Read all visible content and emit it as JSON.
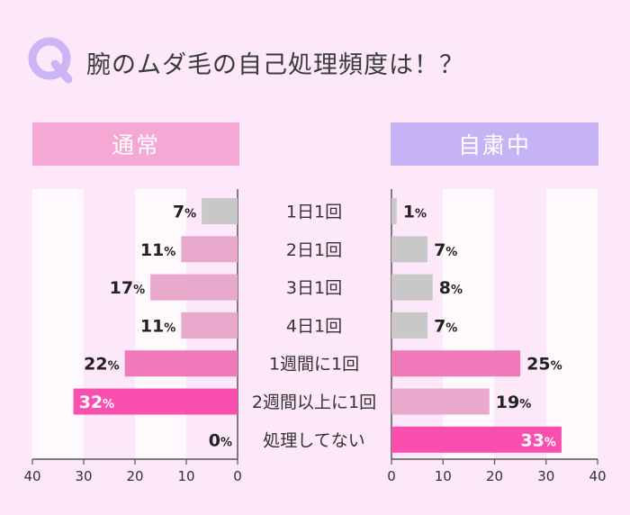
{
  "question": {
    "badge": "Q",
    "title": "腕のムダ毛の自己処理頻度は！？"
  },
  "colors": {
    "background": "#fce8f8",
    "header_left": "#f6a8d5",
    "header_right": "#c6b3f6",
    "bar_gray": "#c8c8c8",
    "bar_light_pink": "#e9a9cc",
    "bar_mid_pink": "#f07ab9",
    "bar_hot_pink": "#fb4fb0",
    "badge": "#cbb5f5"
  },
  "chart_data": {
    "type": "bar",
    "orientation": "horizontal",
    "unit": "%",
    "categories": [
      "1日1回",
      "2日1回",
      "3日1回",
      "4日1回",
      "1週間に1回",
      "2週間以上に1回",
      "処理してない"
    ],
    "series": [
      {
        "name": "通常",
        "values": [
          7,
          11,
          17,
          11,
          22,
          32,
          0
        ],
        "colors": [
          "gray",
          "light_pink",
          "light_pink",
          "light_pink",
          "mid_pink",
          "hot_pink",
          "hot_pink"
        ]
      },
      {
        "name": "自粛中",
        "values": [
          1,
          7,
          8,
          7,
          25,
          19,
          33
        ],
        "colors": [
          "gray",
          "gray",
          "gray",
          "gray",
          "mid_pink",
          "light_pink",
          "hot_pink"
        ]
      }
    ],
    "xlim": [
      0,
      40
    ],
    "ticks": [
      "40",
      "30",
      "20",
      "10",
      "0"
    ],
    "ticks_right": [
      "0",
      "10",
      "20",
      "30",
      "40"
    ]
  }
}
